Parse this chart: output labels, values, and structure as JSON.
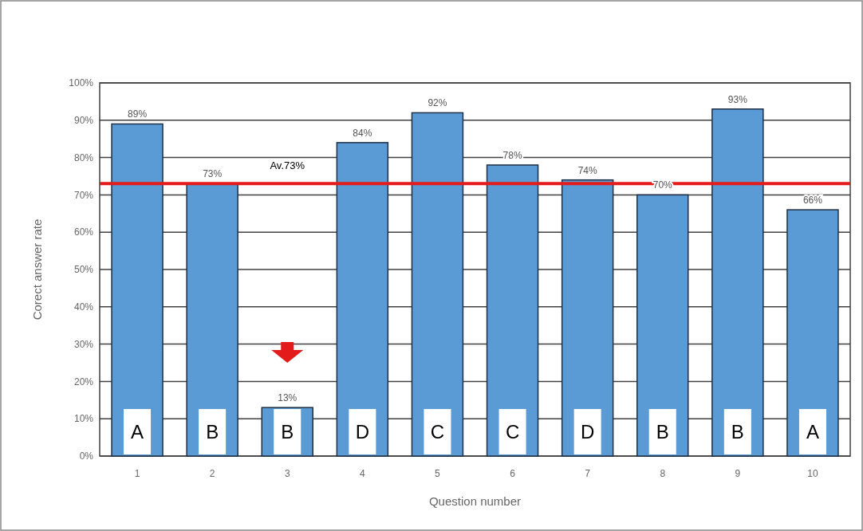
{
  "chart_data": {
    "type": "bar",
    "xlabel": "Question number",
    "ylabel": "Corect answer rate",
    "categories": [
      "1",
      "2",
      "3",
      "4",
      "5",
      "6",
      "7",
      "8",
      "9",
      "10"
    ],
    "values": [
      89,
      73,
      13,
      84,
      92,
      78,
      74,
      70,
      93,
      66
    ],
    "value_labels": [
      "89%",
      "73%",
      "13%",
      "84%",
      "92%",
      "78%",
      "74%",
      "70%",
      "93%",
      "66%"
    ],
    "color": "#5b9bd5",
    "ylim": [
      0,
      100
    ],
    "yticks": [
      {
        "value": 0,
        "label": "0%"
      },
      {
        "value": 10,
        "label": "10%"
      },
      {
        "value": 20,
        "label": "20%"
      },
      {
        "value": 30,
        "label": "30%"
      },
      {
        "value": 40,
        "label": "40%"
      },
      {
        "value": 50,
        "label": "50%"
      },
      {
        "value": 60,
        "label": "60%"
      },
      {
        "value": 70,
        "label": "70%"
      },
      {
        "value": 80,
        "label": "80%"
      },
      {
        "value": 90,
        "label": "90%"
      },
      {
        "value": 100,
        "label": "100%"
      }
    ],
    "grid": "y",
    "ref_lines": [
      {
        "axis": "y",
        "value": 73,
        "label": "Av.73%",
        "color": "#e31b1b"
      }
    ],
    "annotations": [
      "A",
      "B",
      "B",
      "D",
      "C",
      "C",
      "D",
      "B",
      "B",
      "A"
    ]
  }
}
